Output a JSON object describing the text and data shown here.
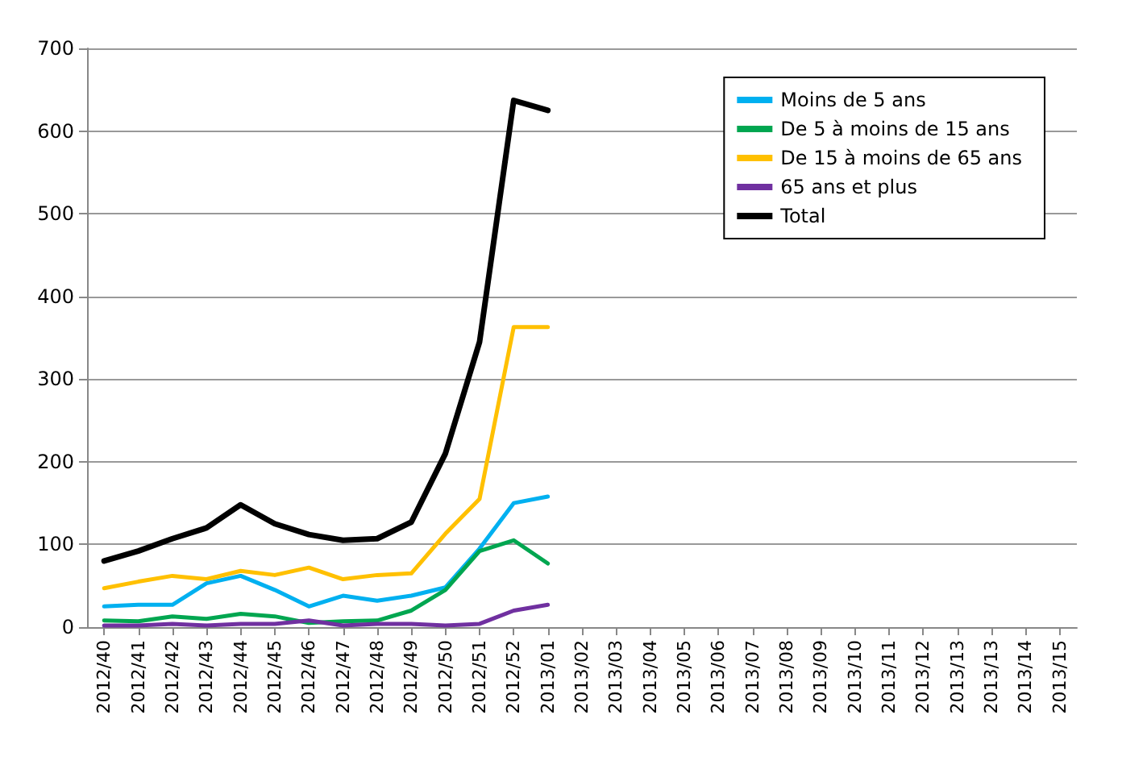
{
  "chart_data": {
    "type": "line",
    "categories": [
      "2012/40",
      "2012/41",
      "2012/42",
      "2012/43",
      "2012/44",
      "2012/45",
      "2012/46",
      "2012/47",
      "2012/48",
      "2012/49",
      "2012/50",
      "2012/51",
      "2012/52",
      "2013/01",
      "2013/02",
      "2013/03",
      "2013/04",
      "2013/05",
      "2013/06",
      "2013/07",
      "2013/08",
      "2013/09",
      "2013/10",
      "2013/11",
      "2013/12",
      "2013/13",
      "2013/13",
      "2013/14",
      "2013/15"
    ],
    "series": [
      {
        "name": "Moins de 5 ans",
        "color": "#00b0f0",
        "values": [
          25,
          27,
          27,
          53,
          62,
          45,
          25,
          38,
          32,
          38,
          48,
          95,
          150,
          158,
          null,
          null,
          null,
          null,
          null,
          null,
          null,
          null,
          null,
          null,
          null,
          null,
          null,
          null,
          null
        ]
      },
      {
        "name": "De 5 à moins de 15 ans",
        "color": "#00a650",
        "values": [
          8,
          7,
          13,
          10,
          16,
          13,
          5,
          7,
          8,
          20,
          45,
          92,
          105,
          77,
          null,
          null,
          null,
          null,
          null,
          null,
          null,
          null,
          null,
          null,
          null,
          null,
          null,
          null,
          null
        ]
      },
      {
        "name": "De 15 à moins de 65 ans",
        "color": "#ffc000",
        "values": [
          47,
          55,
          62,
          58,
          68,
          63,
          72,
          58,
          63,
          65,
          113,
          155,
          363,
          363,
          null,
          null,
          null,
          null,
          null,
          null,
          null,
          null,
          null,
          null,
          null,
          null,
          null,
          null,
          null
        ]
      },
      {
        "name": "65 ans et plus",
        "color": "#7030a0",
        "values": [
          2,
          2,
          4,
          2,
          4,
          4,
          8,
          2,
          4,
          4,
          2,
          4,
          20,
          27,
          null,
          null,
          null,
          null,
          null,
          null,
          null,
          null,
          null,
          null,
          null,
          null,
          null,
          null,
          null
        ]
      },
      {
        "name": "Total",
        "color": "#000000",
        "values": [
          80,
          92,
          107,
          120,
          148,
          125,
          112,
          105,
          107,
          127,
          210,
          345,
          637,
          625,
          null,
          null,
          null,
          null,
          null,
          null,
          null,
          null,
          null,
          null,
          null,
          null,
          null,
          null,
          null
        ]
      }
    ],
    "ylim": [
      0,
      700
    ],
    "yticks": [
      0,
      100,
      200,
      300,
      400,
      500,
      600,
      700
    ],
    "grid": "y",
    "legend": "top right",
    "marker": "none",
    "line_style": "solid"
  }
}
